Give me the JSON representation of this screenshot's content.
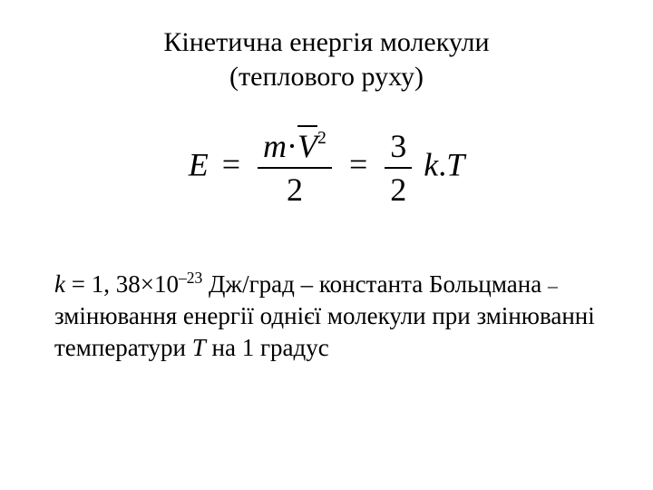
{
  "title": {
    "line1": "Кінетична енергія молекули",
    "line2": "(теплового руху)"
  },
  "formula": {
    "E": "E",
    "eq": "=",
    "m": "m",
    "dot": "·",
    "V": "V",
    "sq": "2",
    "den1": "2",
    "num2": "3",
    "den2": "2",
    "k": "k",
    "period": ".",
    "T": "T"
  },
  "body": {
    "k": "k",
    "eq_val": " = 1, 38",
    "times": "×",
    "ten": "10",
    "exp": "–23",
    "units": " Дж/град – константа Больцмана ",
    "dash_small": "–",
    "rest": "змінювання енергії однієї молекули при змінюванні температури ",
    "T": "T",
    "rest2": " на 1 градус"
  },
  "style": {
    "background": "#ffffff",
    "text_color": "#000000",
    "title_fontsize": 30,
    "formula_fontsize": 36,
    "body_fontsize": 27,
    "font_family": "Times New Roman"
  }
}
